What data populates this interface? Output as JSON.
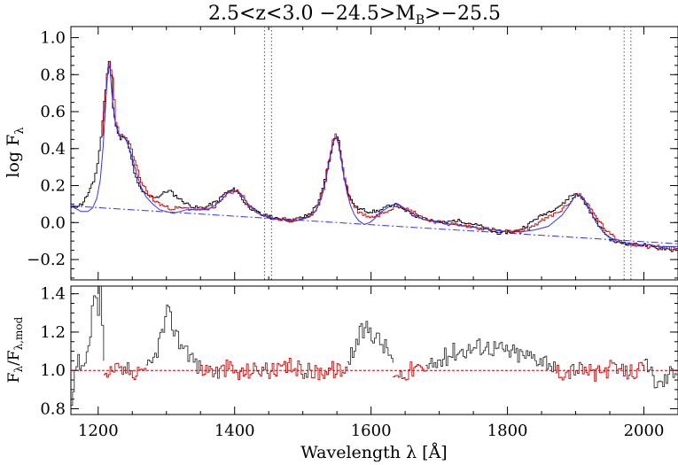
{
  "title": "2.5<z<3.0 −24.5>M",
  "title_sub": "B",
  "title_tail": ">−25.5",
  "colors": {
    "data": "#000000",
    "fit": "#cc0000",
    "model": "#3333ff",
    "continuum": "#3333ff",
    "ratio_ref": "#cc0000",
    "axis": "#000000"
  },
  "chart_data": [
    {
      "type": "line",
      "panel": "top",
      "ylabel_main": "log F",
      "ylabel_sub": "λ",
      "xlim": [
        1160,
        2050
      ],
      "ylim": [
        -0.31,
        1.06
      ],
      "yticks": [
        -0.2,
        0.0,
        0.2,
        0.4,
        0.6,
        0.8,
        1.0
      ],
      "ytick_labels": [
        "−0.2",
        "0.0",
        "0.2",
        "0.4",
        "0.6",
        "0.8",
        "1.0"
      ],
      "continuum": {
        "x": [
          1160,
          2050
        ],
        "y": [
          0.09,
          -0.115
        ]
      },
      "continuum_style": "dash-dot",
      "vlines": [
        1444,
        1454,
        1971,
        1981
      ],
      "vline_style": "dotted",
      "series": [
        {
          "role": "data",
          "x": [
            1160,
            1175,
            1185,
            1192,
            1198,
            1203,
            1208,
            1212,
            1215,
            1218,
            1221,
            1225,
            1228,
            1232,
            1236,
            1240,
            1244,
            1248,
            1252,
            1257,
            1262,
            1266,
            1270,
            1275,
            1280,
            1287,
            1295,
            1300,
            1305,
            1310,
            1318,
            1325,
            1335,
            1345,
            1355,
            1365,
            1375,
            1385,
            1392,
            1398,
            1402,
            1408,
            1415,
            1422,
            1430,
            1440,
            1450,
            1460,
            1470,
            1480,
            1490,
            1500,
            1510,
            1520,
            1528,
            1534,
            1540,
            1545,
            1549,
            1552,
            1556,
            1560,
            1565,
            1570,
            1578,
            1586,
            1595,
            1605,
            1615,
            1625,
            1632,
            1638,
            1645,
            1652,
            1660,
            1670,
            1680,
            1690,
            1700,
            1710,
            1720,
            1730,
            1740,
            1750,
            1760,
            1770,
            1780,
            1790,
            1800,
            1810,
            1820,
            1830,
            1840,
            1850,
            1860,
            1870,
            1880,
            1885,
            1890,
            1895,
            1900,
            1905,
            1910,
            1915,
            1920,
            1925,
            1930,
            1940,
            1950,
            1960,
            1970,
            1980,
            1990,
            2000,
            2010,
            2020,
            2030,
            2040,
            2050
          ],
          "y": [
            0.08,
            0.1,
            0.16,
            0.22,
            0.32,
            0.46,
            0.65,
            0.8,
            0.88,
            0.8,
            0.62,
            0.52,
            0.48,
            0.45,
            0.47,
            0.46,
            0.41,
            0.34,
            0.27,
            0.21,
            0.18,
            0.16,
            0.15,
            0.14,
            0.14,
            0.14,
            0.16,
            0.17,
            0.17,
            0.15,
            0.13,
            0.11,
            0.09,
            0.08,
            0.08,
            0.1,
            0.12,
            0.16,
            0.17,
            0.18,
            0.17,
            0.14,
            0.1,
            0.08,
            0.06,
            0.04,
            0.03,
            0.02,
            0.02,
            0.01,
            0.02,
            0.03,
            0.05,
            0.1,
            0.18,
            0.28,
            0.38,
            0.45,
            0.47,
            0.44,
            0.34,
            0.24,
            0.16,
            0.12,
            0.08,
            0.07,
            0.06,
            0.06,
            0.07,
            0.09,
            0.1,
            0.09,
            0.07,
            0.06,
            0.04,
            0.03,
            0.02,
            0.01,
            0.0,
            0.0,
            0.01,
            0.01,
            0.0,
            -0.01,
            -0.02,
            -0.04,
            -0.05,
            -0.06,
            -0.05,
            -0.05,
            -0.03,
            -0.01,
            0.02,
            0.04,
            0.06,
            0.08,
            0.1,
            0.12,
            0.14,
            0.15,
            0.16,
            0.14,
            0.12,
            0.09,
            0.06,
            0.03,
            0.0,
            -0.05,
            -0.09,
            -0.11,
            -0.11,
            -0.12,
            -0.12,
            -0.12,
            -0.13,
            -0.14,
            -0.14,
            -0.15,
            -0.13
          ]
        },
        {
          "role": "fit",
          "x": [
            1205,
            1212,
            1216,
            1220,
            1225,
            1230,
            1236,
            1242,
            1248,
            1255,
            1262,
            1270,
            1280,
            1300,
            1360,
            1370,
            1380,
            1390,
            1398,
            1405,
            1412,
            1420,
            1430,
            1440,
            1450,
            1460,
            1470,
            1480,
            1500,
            1515,
            1525,
            1532,
            1538,
            1543,
            1547,
            1551,
            1555,
            1560,
            1566,
            1572,
            1580,
            1590,
            1600,
            1610,
            1620,
            1630,
            1638,
            1645,
            1652,
            1660,
            1670,
            1680,
            1690,
            1700,
            1800,
            1815,
            1830,
            1845,
            1860,
            1875,
            1885,
            1895,
            1900,
            1905,
            1910,
            1918,
            1925,
            1935,
            1945,
            1955,
            1965,
            1975,
            1990,
            2005,
            2020,
            2035,
            2050
          ],
          "y": [
            0.48,
            0.8,
            0.87,
            0.78,
            0.55,
            0.48,
            0.46,
            0.45,
            0.39,
            0.3,
            0.22,
            0.17,
            0.12,
            0.08,
            0.07,
            0.09,
            0.12,
            0.16,
            0.17,
            0.17,
            0.14,
            0.09,
            0.06,
            0.04,
            0.03,
            0.02,
            0.02,
            0.01,
            0.02,
            0.05,
            0.12,
            0.22,
            0.35,
            0.44,
            0.47,
            0.44,
            0.35,
            0.24,
            0.15,
            0.1,
            0.06,
            0.04,
            0.03,
            0.04,
            0.06,
            0.08,
            0.1,
            0.09,
            0.07,
            0.06,
            0.04,
            0.02,
            0.01,
            0.0,
            -0.05,
            -0.05,
            -0.03,
            0.0,
            0.03,
            0.06,
            0.09,
            0.13,
            0.15,
            0.15,
            0.13,
            0.09,
            0.05,
            0.0,
            -0.05,
            -0.08,
            -0.1,
            -0.11,
            -0.12,
            -0.13,
            -0.13,
            -0.14,
            -0.14
          ]
        },
        {
          "role": "model",
          "x": [
            1160,
            1175,
            1185,
            1192,
            1198,
            1203,
            1207,
            1210,
            1213,
            1215,
            1217,
            1220,
            1224,
            1228,
            1232,
            1236,
            1240,
            1245,
            1250,
            1256,
            1262,
            1270,
            1280,
            1290,
            1300,
            1310,
            1320,
            1330,
            1340,
            1350,
            1360,
            1370,
            1380,
            1390,
            1398,
            1405,
            1412,
            1420,
            1430,
            1440,
            1450,
            1460,
            1470,
            1480,
            1490,
            1500,
            1510,
            1520,
            1528,
            1534,
            1540,
            1545,
            1549,
            1552,
            1556,
            1560,
            1565,
            1570,
            1576,
            1582,
            1590,
            1598,
            1605,
            1612,
            1620,
            1628,
            1635,
            1640,
            1648,
            1656,
            1665,
            1675,
            1685,
            1700,
            1720,
            1740,
            1760,
            1780,
            1800,
            1820,
            1840,
            1860,
            1870,
            1880,
            1888,
            1895,
            1900,
            1905,
            1910,
            1915,
            1922,
            1930,
            1940,
            1950,
            1960,
            1970,
            1980,
            1990,
            2000,
            2010,
            2020,
            2030,
            2040,
            2050
          ],
          "y": [
            0.09,
            0.06,
            0.06,
            0.08,
            0.13,
            0.23,
            0.4,
            0.58,
            0.76,
            0.86,
            0.84,
            0.7,
            0.56,
            0.5,
            0.47,
            0.47,
            0.45,
            0.41,
            0.35,
            0.27,
            0.2,
            0.14,
            0.1,
            0.07,
            0.06,
            0.05,
            0.06,
            0.07,
            0.07,
            0.07,
            0.07,
            0.09,
            0.12,
            0.16,
            0.17,
            0.17,
            0.14,
            0.1,
            0.06,
            0.04,
            0.03,
            0.02,
            0.02,
            0.01,
            0.01,
            0.02,
            0.03,
            0.07,
            0.14,
            0.24,
            0.36,
            0.44,
            0.46,
            0.43,
            0.35,
            0.25,
            0.16,
            0.09,
            0.04,
            0.01,
            -0.01,
            0.0,
            0.02,
            0.05,
            0.07,
            0.09,
            0.1,
            0.1,
            0.08,
            0.06,
            0.04,
            0.02,
            0.01,
            0.0,
            -0.01,
            -0.02,
            -0.03,
            -0.04,
            -0.05,
            -0.05,
            -0.04,
            -0.02,
            0.01,
            0.04,
            0.08,
            0.12,
            0.15,
            0.15,
            0.14,
            0.11,
            0.06,
            0.0,
            -0.05,
            -0.08,
            -0.1,
            -0.11,
            -0.11,
            -0.12,
            -0.12,
            -0.12,
            -0.13,
            -0.13,
            -0.13,
            -0.13
          ]
        }
      ]
    },
    {
      "type": "line",
      "panel": "bottom",
      "ylabel_main": "F",
      "ylabel_sub1": "λ",
      "ylabel_mid": "/F",
      "ylabel_sub2": "λ,mod",
      "xlabel": "Wavelength λ [Å]",
      "xlim": [
        1160,
        2050
      ],
      "ylim": [
        0.77,
        1.44
      ],
      "yticks": [
        0.8,
        1.0,
        1.2,
        1.4
      ],
      "ytick_labels": [
        "0.8",
        "1.0",
        "1.2",
        "1.4"
      ],
      "xticks": [
        1200,
        1400,
        1600,
        1800,
        2000
      ],
      "xtick_labels": [
        "1200",
        "1400",
        "1600",
        "1800",
        "2000"
      ],
      "reference": 1.0,
      "series": [
        {
          "role": "ratio_unfit",
          "x": [
            1160,
            1165,
            1170,
            1175,
            1180,
            1185,
            1190,
            1193,
            1196,
            1199,
            1202,
            1205,
            1208
          ],
          "y": [
            0.8,
            0.95,
            1.05,
            0.98,
            1.02,
            1.1,
            1.3,
            1.4,
            1.38,
            1.3,
            1.42,
            1.2,
            1.05
          ]
        },
        {
          "role": "ratio_unfit",
          "x": [
            1270,
            1280,
            1288,
            1295,
            1300,
            1305,
            1310,
            1318,
            1326,
            1334,
            1342,
            1350
          ],
          "y": [
            1.0,
            1.05,
            1.15,
            1.22,
            1.3,
            1.27,
            1.22,
            1.15,
            1.13,
            1.08,
            1.04,
            1.0
          ]
        },
        {
          "role": "ratio_unfit",
          "x": [
            1565,
            1575,
            1585,
            1595,
            1605,
            1615,
            1625,
            1632
          ],
          "y": [
            1.05,
            1.12,
            1.2,
            1.22,
            1.18,
            1.14,
            1.1,
            1.04
          ]
        },
        {
          "role": "ratio_unfit",
          "x": [
            1680,
            1700,
            1720,
            1740,
            1760,
            1780,
            1800,
            1820,
            1840,
            1860,
            1870
          ],
          "y": [
            1.0,
            1.05,
            1.1,
            1.11,
            1.13,
            1.12,
            1.1,
            1.08,
            1.07,
            1.05,
            1.0
          ]
        },
        {
          "role": "ratio_unfit",
          "x": [
            2000,
            2010,
            2020,
            2030,
            2040,
            2050
          ],
          "y": [
            1.02,
            0.98,
            0.92,
            0.95,
            1.0,
            1.02
          ]
        },
        {
          "role": "ratio_fit",
          "x": [
            1208,
            1215,
            1222,
            1230,
            1240,
            1250,
            1260,
            1270
          ],
          "y": [
            1.0,
            0.98,
            1.02,
            0.99,
            1.01,
            0.99,
            1.02,
            1.0
          ]
        },
        {
          "role": "ratio_fit",
          "x": [
            1350,
            1360,
            1375,
            1390,
            1405,
            1420,
            1440,
            1460,
            1480,
            1500,
            1520,
            1540,
            1560,
            1565
          ],
          "y": [
            1.0,
            1.01,
            0.99,
            1.02,
            0.98,
            1.0,
            1.01,
            0.99,
            1.02,
            1.0,
            0.99,
            1.01,
            0.99,
            1.0
          ]
        },
        {
          "role": "ratio_fit",
          "x": [
            1632,
            1645,
            1660,
            1680
          ],
          "y": [
            1.0,
            0.98,
            1.01,
            1.0
          ]
        },
        {
          "role": "ratio_fit",
          "x": [
            1870,
            1885,
            1900,
            1915,
            1930,
            1950,
            1970,
            1985,
            2000
          ],
          "y": [
            1.0,
            0.99,
            1.01,
            1.0,
            0.98,
            1.01,
            0.99,
            1.0,
            1.0
          ]
        }
      ]
    }
  ]
}
